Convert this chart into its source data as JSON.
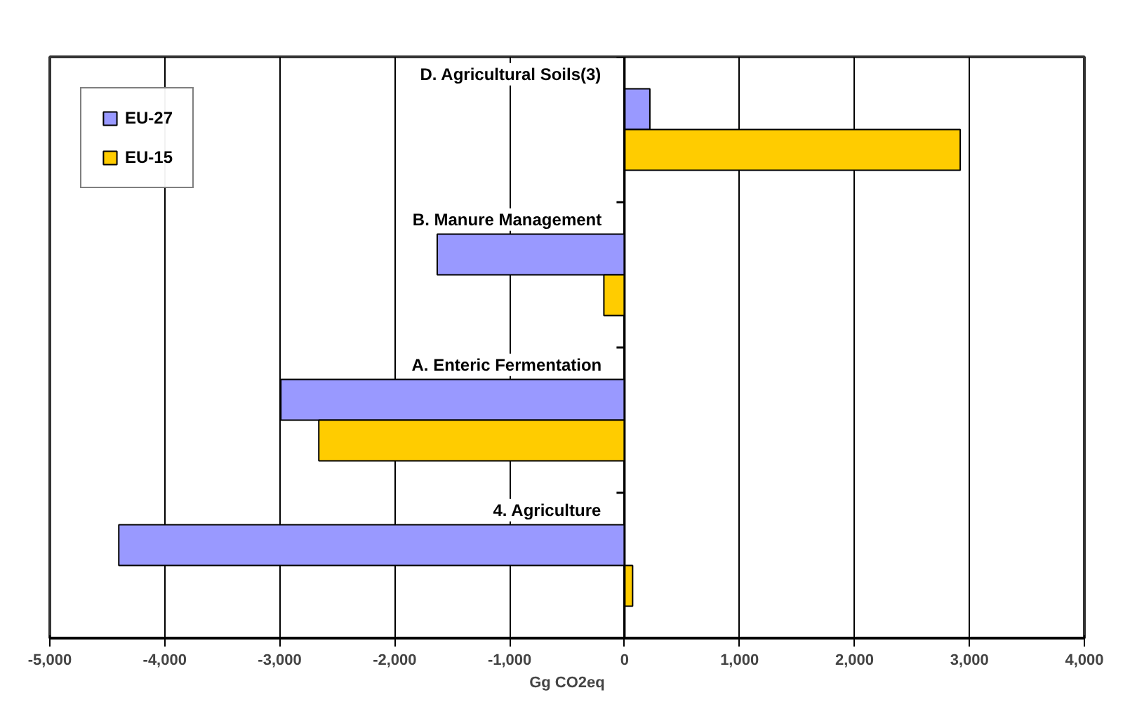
{
  "chart_data": {
    "type": "bar",
    "orientation": "horizontal",
    "xlabel": "Gg CO2eq",
    "categories": [
      "D.  Agricultural Soils(3)",
      "B.  Manure Management",
      "A.  Enteric Fermentation",
      "4.  Agriculture"
    ],
    "series": [
      {
        "name": "EU-27",
        "color": "#9999ff",
        "values": [
          220,
          -1630,
          -2990,
          -4400
        ]
      },
      {
        "name": "EU-15",
        "color": "#ffcc00",
        "values": [
          2920,
          -180,
          -2660,
          70
        ]
      }
    ],
    "xlim": [
      -5000,
      4000
    ],
    "xticks": [
      {
        "value": -5000,
        "label": "-5,000"
      },
      {
        "value": -4000,
        "label": "-4,000"
      },
      {
        "value": -3000,
        "label": "-3,000"
      },
      {
        "value": -2000,
        "label": "-2,000"
      },
      {
        "value": -1000,
        "label": "-1,000"
      },
      0,
      {
        "value": 1000,
        "label": "1,000"
      },
      {
        "value": 2000,
        "label": "2,000"
      },
      {
        "value": 3000,
        "label": "3,000"
      },
      {
        "value": 4000,
        "label": "4,000"
      }
    ],
    "grid": "x",
    "legend": "top left"
  }
}
